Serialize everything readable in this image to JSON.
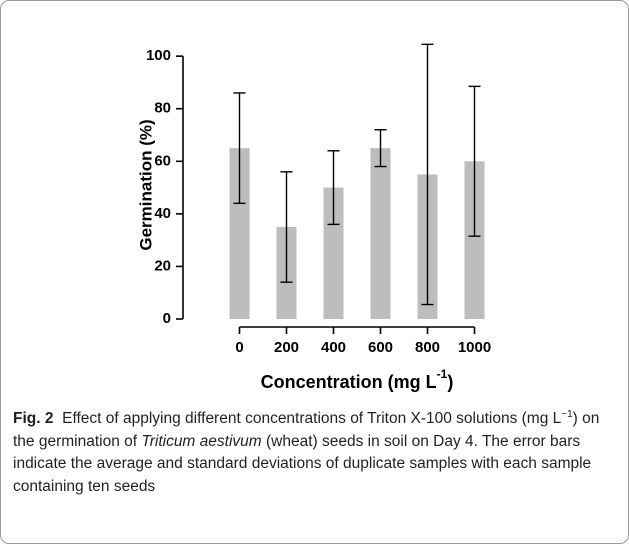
{
  "chart_data": {
    "type": "bar",
    "categories": [
      "0",
      "200",
      "400",
      "600",
      "800",
      "1000"
    ],
    "values": [
      65,
      35,
      50,
      65,
      55,
      60
    ],
    "errors": [
      21,
      21,
      14,
      7,
      49.5,
      28.5
    ],
    "color": "#bdbdbd",
    "error_color": "#000000",
    "ylim": [
      0,
      105
    ],
    "yticks": [
      0,
      20,
      40,
      60,
      80,
      100
    ],
    "y_label": "Germination (%)",
    "x_label": {
      "text": "Concentration (mg L",
      "superscript": "-1",
      "tail": ")"
    }
  },
  "caption": {
    "label": "Fig. 2",
    "text_1": "Effect of applying different concentrations of Triton X-100 solutions (mg L",
    "superscript": "−1",
    "text_2": ") on the germination of ",
    "species": "Triticum aestivum",
    "text_3": " (wheat) seeds in soil on Day 4. The error bars indicate the average and standard deviations of duplicate samples with each sample containing ten seeds"
  }
}
